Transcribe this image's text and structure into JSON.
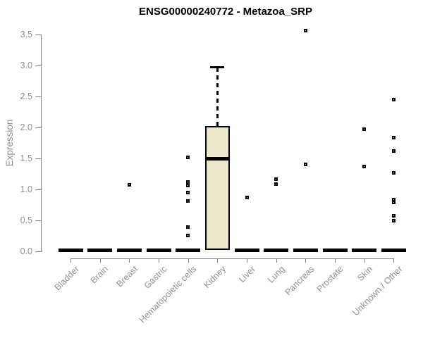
{
  "chart_data": {
    "type": "boxplot",
    "title": "ENSG00000240772 - Metazoa_SRP",
    "xlabel": "",
    "ylabel": "Expression",
    "ylim": [
      0,
      3.5
    ],
    "yticks": [
      0.0,
      0.5,
      1.0,
      1.5,
      2.0,
      2.5,
      3.0,
      3.5
    ],
    "grid": false,
    "legend": "none",
    "categories": [
      "Bladder",
      "Brain",
      "Breast",
      "Gastric",
      "Hematopoietic cells",
      "Kidney",
      "Liver",
      "Lung",
      "Pancreas",
      "Prostate",
      "Skin",
      "Unknown / Other"
    ],
    "series": [
      {
        "category": "Bladder",
        "q1": 0,
        "median": 0,
        "q3": 0,
        "whisker_low": 0,
        "whisker_high": 0,
        "outliers": []
      },
      {
        "category": "Brain",
        "q1": 0,
        "median": 0,
        "q3": 0,
        "whisker_low": 0,
        "whisker_high": 0,
        "outliers": []
      },
      {
        "category": "Breast",
        "q1": 0,
        "median": 0,
        "q3": 0,
        "whisker_low": 0,
        "whisker_high": 0,
        "outliers": [
          1.07
        ]
      },
      {
        "category": "Gastric",
        "q1": 0,
        "median": 0,
        "q3": 0,
        "whisker_low": 0,
        "whisker_high": 0,
        "outliers": []
      },
      {
        "category": "Hematopoietic cells",
        "q1": 0,
        "median": 0,
        "q3": 0,
        "whisker_low": 0,
        "whisker_high": 0,
        "outliers": [
          1.52,
          1.12,
          1.06,
          0.95,
          0.81,
          0.39,
          0.26
        ]
      },
      {
        "category": "Kidney",
        "q1": 0.02,
        "median": 1.5,
        "q3": 2.02,
        "whisker_low": 0.02,
        "whisker_high": 2.97,
        "outliers": []
      },
      {
        "category": "Liver",
        "q1": 0,
        "median": 0,
        "q3": 0,
        "whisker_low": 0,
        "whisker_high": 0,
        "outliers": [
          0.87
        ]
      },
      {
        "category": "Lung",
        "q1": 0,
        "median": 0,
        "q3": 0,
        "whisker_low": 0,
        "whisker_high": 0,
        "outliers": [
          1.17,
          1.09
        ]
      },
      {
        "category": "Pancreas",
        "q1": 0,
        "median": 0,
        "q3": 0,
        "whisker_low": 0,
        "whisker_high": 0,
        "outliers": [
          3.57,
          1.4
        ]
      },
      {
        "category": "Prostate",
        "q1": 0,
        "median": 0,
        "q3": 0,
        "whisker_low": 0,
        "whisker_high": 0,
        "outliers": []
      },
      {
        "category": "Skin",
        "q1": 0,
        "median": 0,
        "q3": 0,
        "whisker_low": 0,
        "whisker_high": 0,
        "outliers": [
          1.97,
          1.37
        ]
      },
      {
        "category": "Unknown / Other",
        "q1": 0,
        "median": 0,
        "q3": 0,
        "whisker_low": 0,
        "whisker_high": 0,
        "outliers": [
          2.45,
          1.84,
          1.62,
          1.27,
          0.84,
          0.79,
          0.58,
          0.5
        ]
      }
    ],
    "colors": {
      "box_fill": "#ece7cd",
      "box_border": "#000000",
      "median": "#000000",
      "zero_bar": "#000000",
      "outlier_border": "#000000",
      "outlier_fill": "#ffffff",
      "axis_line": "#858585",
      "tick_text": "#909090",
      "title_text": "#000000",
      "background": "#ffffff"
    }
  }
}
